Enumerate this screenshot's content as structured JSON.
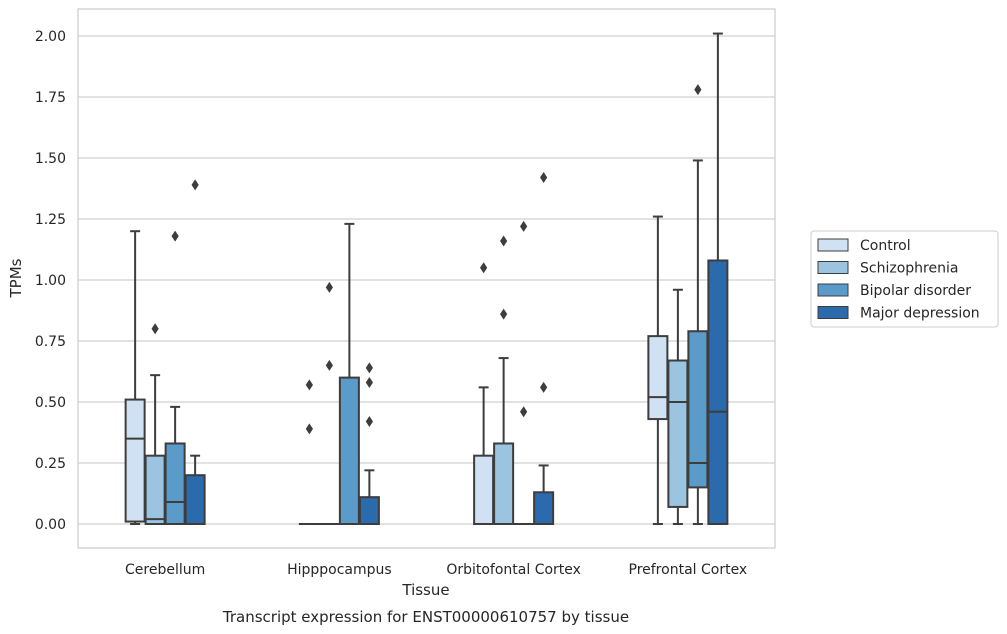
{
  "chart_data": {
    "type": "box",
    "ylabel": "TPMs",
    "xlabel": "Tissue",
    "caption": "Transcript expression for ENST00000610757 by tissue",
    "ylim": [
      -0.1,
      2.11
    ],
    "yticks": [
      0.0,
      0.25,
      0.5,
      0.75,
      1.0,
      1.25,
      1.5,
      1.75,
      2.0
    ],
    "ytick_labels": [
      "0.00",
      "0.25",
      "0.50",
      "0.75",
      "1.00",
      "1.25",
      "1.50",
      "1.75",
      "2.00"
    ],
    "grid": true,
    "legend_position": "right",
    "categories": [
      "Cerebellum",
      "Hipppocampus",
      "Orbitofontal Cortex",
      "Prefrontal Cortex"
    ],
    "series": [
      {
        "name": "Control",
        "color": "#cfe1f2",
        "boxes": [
          {
            "whisker_low": 0.0,
            "q1": 0.01,
            "median": 0.35,
            "q3": 0.51,
            "whisker_high": 1.2,
            "outliers": []
          },
          {
            "whisker_low": 0.0,
            "q1": 0.0,
            "median": 0.0,
            "q3": 0.0,
            "whisker_high": 0.0,
            "outliers": [
              0.39,
              0.57
            ]
          },
          {
            "whisker_low": 0.0,
            "q1": 0.0,
            "median": 0.0,
            "q3": 0.28,
            "whisker_high": 0.56,
            "outliers": [
              1.05
            ]
          },
          {
            "whisker_low": 0.0,
            "q1": 0.43,
            "median": 0.52,
            "q3": 0.77,
            "whisker_high": 1.26,
            "outliers": []
          }
        ]
      },
      {
        "name": "Schizophrenia",
        "color": "#9ac4e0",
        "boxes": [
          {
            "whisker_low": 0.0,
            "q1": 0.0,
            "median": 0.02,
            "q3": 0.28,
            "whisker_high": 0.61,
            "outliers": [
              0.8
            ]
          },
          {
            "whisker_low": 0.0,
            "q1": 0.0,
            "median": 0.0,
            "q3": 0.0,
            "whisker_high": 0.0,
            "outliers": [
              0.65,
              0.97
            ]
          },
          {
            "whisker_low": 0.0,
            "q1": 0.0,
            "median": 0.0,
            "q3": 0.33,
            "whisker_high": 0.68,
            "outliers": [
              0.86,
              1.16
            ]
          },
          {
            "whisker_low": 0.0,
            "q1": 0.07,
            "median": 0.5,
            "q3": 0.67,
            "whisker_high": 0.96,
            "outliers": []
          }
        ]
      },
      {
        "name": "Bipolar disorder",
        "color": "#5a9bc9",
        "boxes": [
          {
            "whisker_low": 0.0,
            "q1": 0.0,
            "median": 0.09,
            "q3": 0.33,
            "whisker_high": 0.48,
            "outliers": [
              1.18
            ]
          },
          {
            "whisker_low": 0.0,
            "q1": 0.0,
            "median": 0.0,
            "q3": 0.6,
            "whisker_high": 1.23,
            "outliers": []
          },
          {
            "whisker_low": 0.0,
            "q1": 0.0,
            "median": 0.0,
            "q3": 0.0,
            "whisker_high": 0.0,
            "outliers": [
              0.46,
              1.22
            ]
          },
          {
            "whisker_low": 0.0,
            "q1": 0.15,
            "median": 0.25,
            "q3": 0.79,
            "whisker_high": 1.49,
            "outliers": [
              1.78
            ]
          }
        ]
      },
      {
        "name": "Major depression",
        "color": "#2a6aad",
        "boxes": [
          {
            "whisker_low": 0.0,
            "q1": 0.0,
            "median": 0.0,
            "q3": 0.2,
            "whisker_high": 0.28,
            "outliers": [
              1.39
            ]
          },
          {
            "whisker_low": 0.0,
            "q1": 0.0,
            "median": 0.0,
            "q3": 0.11,
            "whisker_high": 0.22,
            "outliers": [
              0.42,
              0.58,
              0.64
            ]
          },
          {
            "whisker_low": 0.0,
            "q1": 0.0,
            "median": 0.0,
            "q3": 0.13,
            "whisker_high": 0.24,
            "outliers": [
              0.56,
              1.42
            ]
          },
          {
            "whisker_low": 0.0,
            "q1": 0.0,
            "median": 0.46,
            "q3": 1.08,
            "whisker_high": 2.01,
            "outliers": []
          }
        ]
      }
    ]
  }
}
